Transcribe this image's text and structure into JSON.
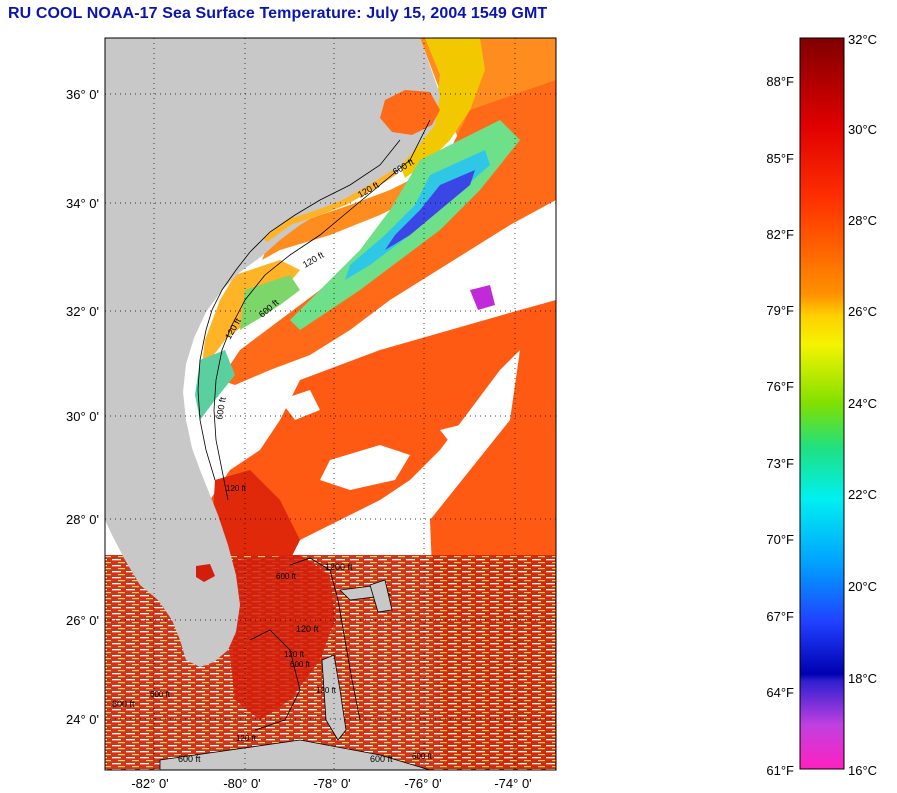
{
  "title": "RU COOL  NOAA-17  Sea Surface Temperature:  July 15, 2004 1549 GMT",
  "map": {
    "lat_ticks": [
      "36° 0'",
      "34° 0'",
      "32° 0'",
      "30° 0'",
      "28° 0'",
      "26° 0'",
      "24° 0'"
    ],
    "lon_ticks": [
      "-82° 0'",
      "-80° 0'",
      "-78° 0'",
      "-76° 0'",
      "-74° 0'"
    ],
    "isobath_labels": [
      "120 ft",
      "600 ft",
      "120 ft",
      "600 ft",
      "120 ft",
      "600 ft",
      "120 ft",
      "1200 ft",
      "600 ft",
      "600 ft",
      "600 ft",
      "120 ft",
      "600 ft",
      "120 ft",
      "600 ft",
      "120 ft",
      "600 ft",
      "120 ft",
      "600 ft"
    ]
  },
  "colorbar": {
    "celsius_labels": [
      "32°C",
      "30°C",
      "28°C",
      "26°C",
      "24°C",
      "22°C",
      "20°C",
      "18°C",
      "16°C"
    ],
    "fahrenheit_labels": [
      "88°F",
      "85°F",
      "82°F",
      "79°F",
      "76°F",
      "73°F",
      "70°F",
      "67°F",
      "64°F",
      "61°F"
    ]
  },
  "colors": {
    "title": "#0a14b4",
    "land": "#c8c8c8",
    "cloud": "#ffffff",
    "sst_warm": "#ff5a14",
    "sst_hot": "#d21e0a"
  }
}
